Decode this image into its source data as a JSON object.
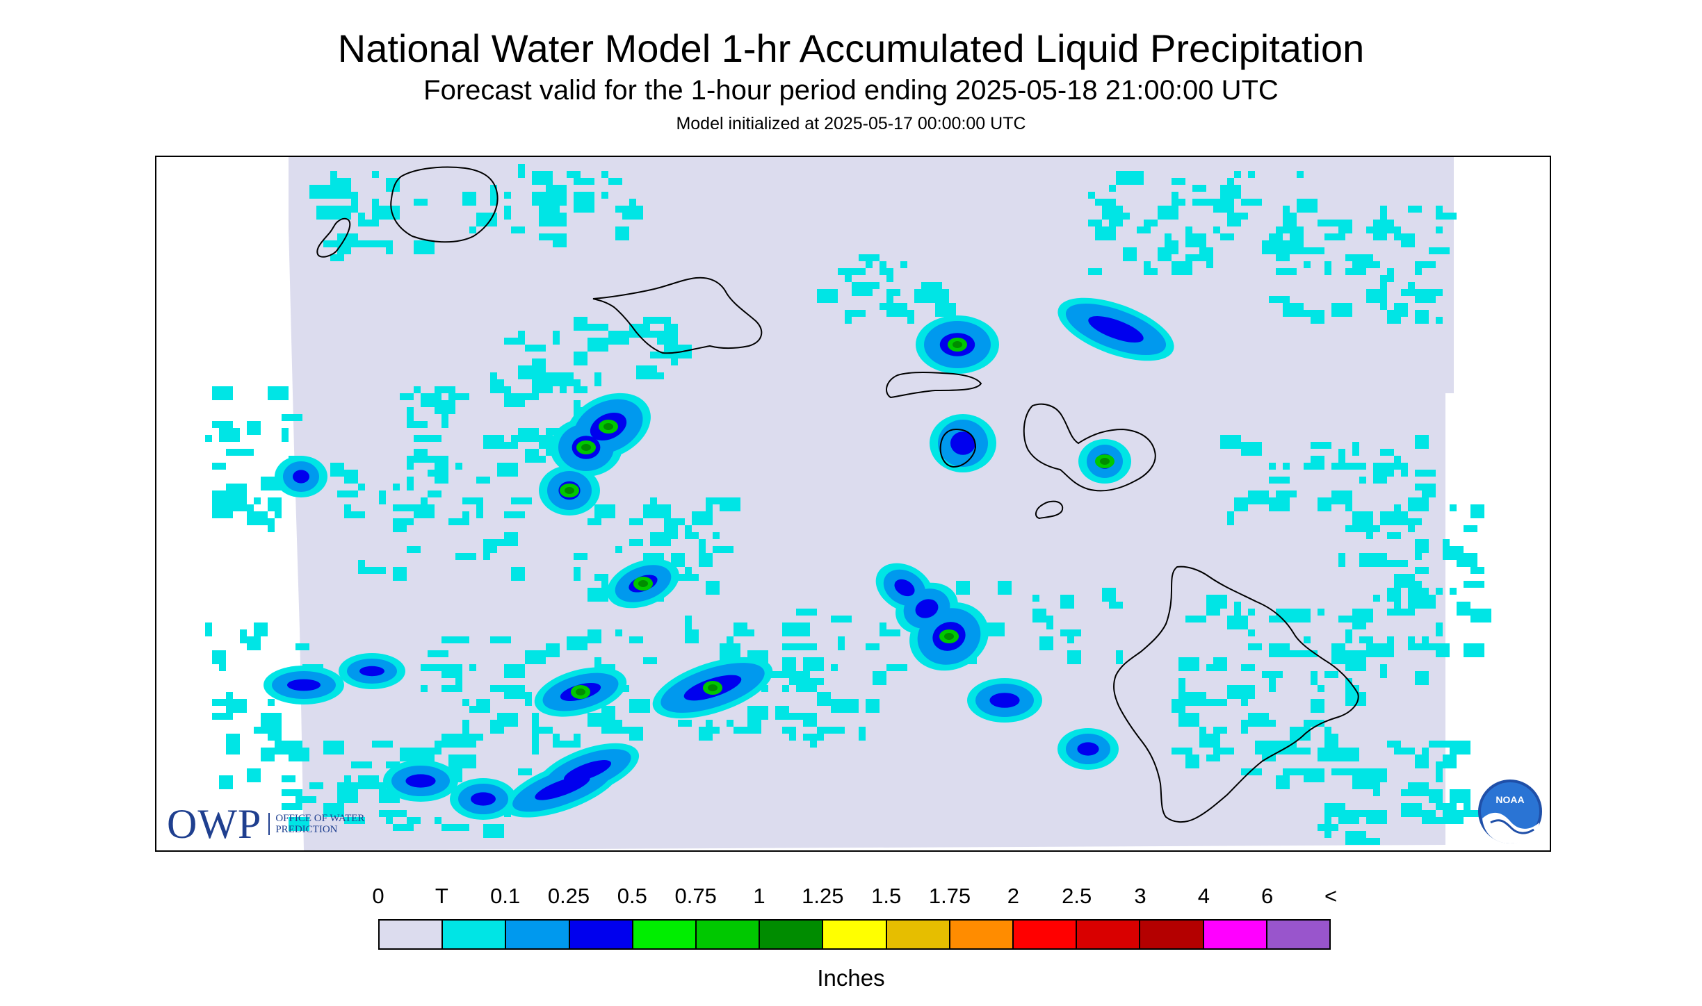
{
  "title": "National Water Model 1-hr Accumulated Liquid Precipitation",
  "subtitle": "Forecast valid for the 1-hour period ending 2025-05-18 21:00:00 UTC",
  "init": "Model initialized at 2025-05-17 00:00:00 UTC",
  "logos": {
    "owp_main": "OWP",
    "owp_sub": "OFFICE OF WATER PREDICTION",
    "noaa": "NOAA"
  },
  "legend": {
    "unit": "Inches",
    "labels": [
      "0",
      "T",
      "0.1",
      "0.25",
      "0.5",
      "0.75",
      "1",
      "1.25",
      "1.5",
      "1.75",
      "2",
      "2.5",
      "3",
      "4",
      "6",
      "<"
    ],
    "colors": [
      "#dcdcee",
      "#00e5e5",
      "#0099ee",
      "#0000ee",
      "#00ee00",
      "#00c800",
      "#008c00",
      "#ffff00",
      "#e6be00",
      "#ff8c00",
      "#ff0000",
      "#d90000",
      "#b40000",
      "#ff00ff",
      "#9955cc"
    ]
  },
  "map": {
    "background": "#dcdcee",
    "coastline": "#000000"
  }
}
